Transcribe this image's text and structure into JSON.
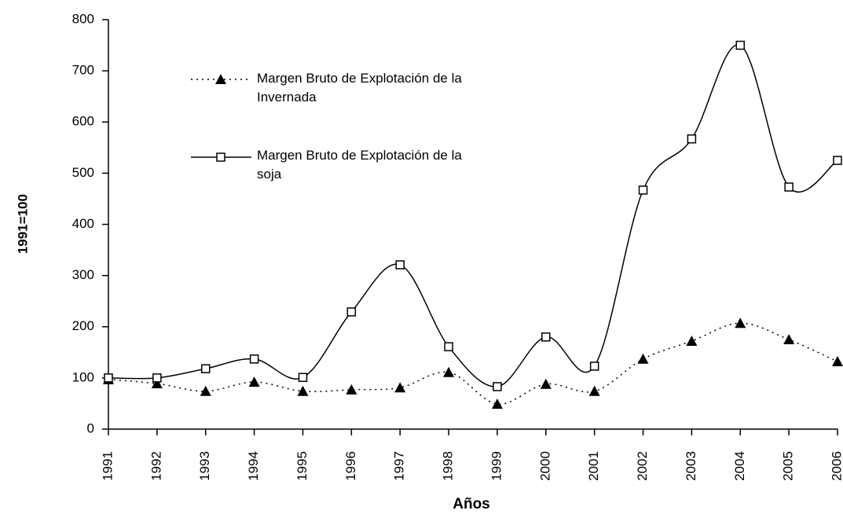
{
  "chart_data": {
    "type": "line",
    "x_label": "Años",
    "y_label": "1991=100",
    "categories": [
      "1991",
      "1992",
      "1993",
      "1994",
      "1995",
      "1996",
      "1997",
      "1998",
      "1999",
      "2000",
      "2001",
      "2002",
      "2003",
      "2004",
      "2005",
      "2006"
    ],
    "series": [
      {
        "name": "Margen Bruto de Explotación de la Invernada",
        "color": "#000000",
        "line_style": "dotted",
        "marker": "triangle",
        "values": [
          97,
          89,
          74,
          92,
          74,
          77,
          81,
          111,
          49,
          88,
          74,
          137,
          172,
          207,
          175,
          132
        ]
      },
      {
        "name": "Margen Bruto de Explotación de la soja",
        "color": "#000000",
        "line_style": "solid",
        "marker": "square",
        "values": [
          100,
          100,
          118,
          137,
          101,
          229,
          321,
          161,
          83,
          180,
          123,
          467,
          567,
          750,
          473,
          525
        ]
      }
    ],
    "ylim": [
      0,
      800
    ],
    "yticks": [
      0,
      100,
      200,
      300,
      400,
      500,
      600,
      700,
      800
    ],
    "grid": false
  }
}
